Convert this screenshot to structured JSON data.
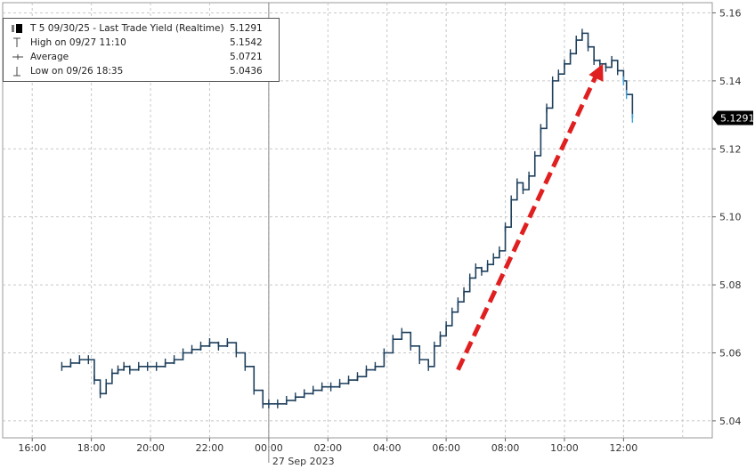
{
  "chart_data": {
    "type": "line",
    "title": "",
    "legend": {
      "placement": "top-left",
      "rows": [
        {
          "icon": "ohlc-bar-icon",
          "label": "T 5 09/30/25 - Last Trade Yield (Realtime)",
          "value": "5.1291"
        },
        {
          "icon": "high-marker-icon",
          "label": "High on 09/27 11:10",
          "value": "5.1542"
        },
        {
          "icon": "average-marker-icon",
          "label": "Average",
          "value": "5.0721"
        },
        {
          "icon": "low-marker-icon",
          "label": "Low on 09/26 18:35",
          "value": "5.0436"
        }
      ]
    },
    "x_ticks": [
      "16:00",
      "18:00",
      "20:00",
      "22:00",
      "00:00",
      "02:00",
      "04:00",
      "06:00",
      "08:00",
      "10:00",
      "12:00"
    ],
    "x_date_label": "27 Sep 2023",
    "y_ticks": [
      "5.16",
      "5.14",
      "5.12",
      "5.10",
      "5.08",
      "5.06",
      "5.04"
    ],
    "ylim": [
      5.035,
      5.163
    ],
    "last_value_tag": "5.1291",
    "grid": true,
    "series": [
      {
        "x_hours": [
          17.0,
          17.3,
          17.6,
          17.9,
          18.1,
          18.3,
          18.5,
          18.7,
          18.9,
          19.1,
          19.3,
          19.6,
          19.9,
          20.2,
          20.5,
          20.8,
          21.1,
          21.4,
          21.7,
          22.0,
          22.3,
          22.6,
          22.9,
          23.2,
          23.5,
          23.8,
          24.0,
          24.3,
          24.6,
          24.9,
          25.2,
          25.5,
          25.8,
          26.1,
          26.4,
          26.7,
          27.0,
          27.3,
          27.6,
          27.9,
          28.2,
          28.5,
          28.8,
          29.1,
          29.4,
          29.6,
          29.8,
          30.0,
          30.2,
          30.4,
          30.6,
          30.8,
          31.0,
          31.2,
          31.4,
          31.6,
          31.8,
          32.0,
          32.2,
          32.4,
          32.6,
          32.8,
          33.0,
          33.2,
          33.4,
          33.6,
          33.8,
          34.0,
          34.2,
          34.4,
          34.6,
          34.8,
          35.0,
          35.2,
          35.4,
          35.6,
          35.8,
          36.0,
          36.1,
          36.3
        ],
        "values": [
          5.056,
          5.057,
          5.058,
          5.058,
          5.052,
          5.048,
          5.051,
          5.054,
          5.055,
          5.056,
          5.055,
          5.056,
          5.056,
          5.056,
          5.057,
          5.058,
          5.06,
          5.061,
          5.062,
          5.063,
          5.062,
          5.063,
          5.06,
          5.056,
          5.049,
          5.045,
          5.045,
          5.045,
          5.046,
          5.047,
          5.048,
          5.049,
          5.05,
          5.05,
          5.051,
          5.052,
          5.053,
          5.055,
          5.056,
          5.06,
          5.064,
          5.066,
          5.062,
          5.058,
          5.056,
          5.062,
          5.065,
          5.068,
          5.072,
          5.075,
          5.078,
          5.082,
          5.085,
          5.084,
          5.086,
          5.088,
          5.09,
          5.097,
          5.105,
          5.11,
          5.108,
          5.112,
          5.118,
          5.126,
          5.132,
          5.14,
          5.142,
          5.145,
          5.148,
          5.152,
          5.154,
          5.15,
          5.146,
          5.145,
          5.144,
          5.146,
          5.143,
          5.14,
          5.136,
          5.129
        ]
      }
    ],
    "annotations": [
      {
        "kind": "dashed-arrow",
        "color": "#e02020",
        "from": {
          "x_hours": 30.4,
          "value": 5.055
        },
        "to": {
          "x_hours": 35.3,
          "value": 5.145
        }
      }
    ]
  },
  "colors": {
    "line": "#1d3f5c",
    "line_recent": "#3aa0d8",
    "grid": "#c8c8c8",
    "session_divider": "#888888",
    "tag_bg": "#000000",
    "tag_text": "#ffffff",
    "arrow": "#e02020"
  }
}
